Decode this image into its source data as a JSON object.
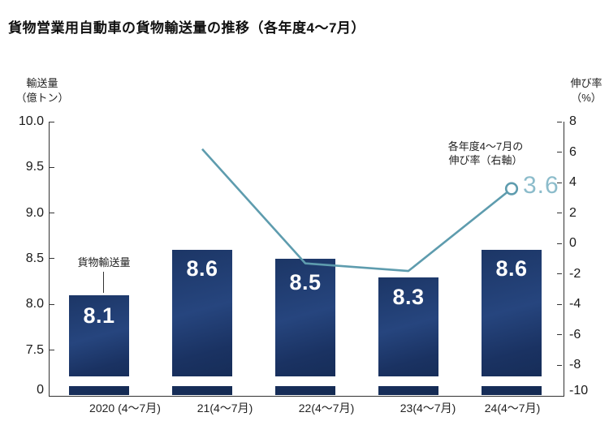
{
  "title": "貨物営業用自動車の貨物輸送量の推移（各年度4～7月）",
  "left_axis": {
    "title": [
      "輸送量",
      "（億トン）"
    ],
    "ticks": [
      "10.0",
      "9.5",
      "9.0",
      "8.5",
      "8.0",
      "7.5",
      "0"
    ]
  },
  "right_axis": {
    "title": [
      "伸び率",
      "（%）"
    ],
    "ticks": [
      "8",
      "6",
      "4",
      "2",
      "0",
      "-2",
      "-4",
      "-6",
      "-8",
      "-10"
    ]
  },
  "annotations": {
    "bar_series_label": "貨物輸送量",
    "line_series_label": [
      "各年度4～7月の",
      "伸び率（右軸）"
    ],
    "last_point_label": "3.6"
  },
  "chart_data": {
    "type": "bar+line combo",
    "categories": [
      "2020 (4～7月)",
      "21(4～7月)",
      "22(4～7月)",
      "23(4～7月)",
      "24(4～7月)"
    ],
    "series": [
      {
        "name": "貨物輸送量",
        "type": "bar",
        "axis": "left",
        "unit": "億トン",
        "values": [
          8.1,
          8.6,
          8.5,
          8.3,
          8.6
        ]
      },
      {
        "name": "伸び率（右軸）",
        "type": "line",
        "axis": "right",
        "unit": "%",
        "values": [
          null,
          6.2,
          -1.3,
          -1.8,
          3.6
        ]
      }
    ],
    "left_axis_visible_range": [
      7.5,
      10.0
    ],
    "left_axis_break_to_zero": true,
    "right_axis_range": [
      -10,
      8
    ],
    "grid": false,
    "legend_position": "none (in-chart annotations)"
  },
  "colors": {
    "bar": "#1d3765",
    "line": "#5e9cae",
    "point_label": "#8cbccb",
    "text": "#1a1a1a"
  }
}
